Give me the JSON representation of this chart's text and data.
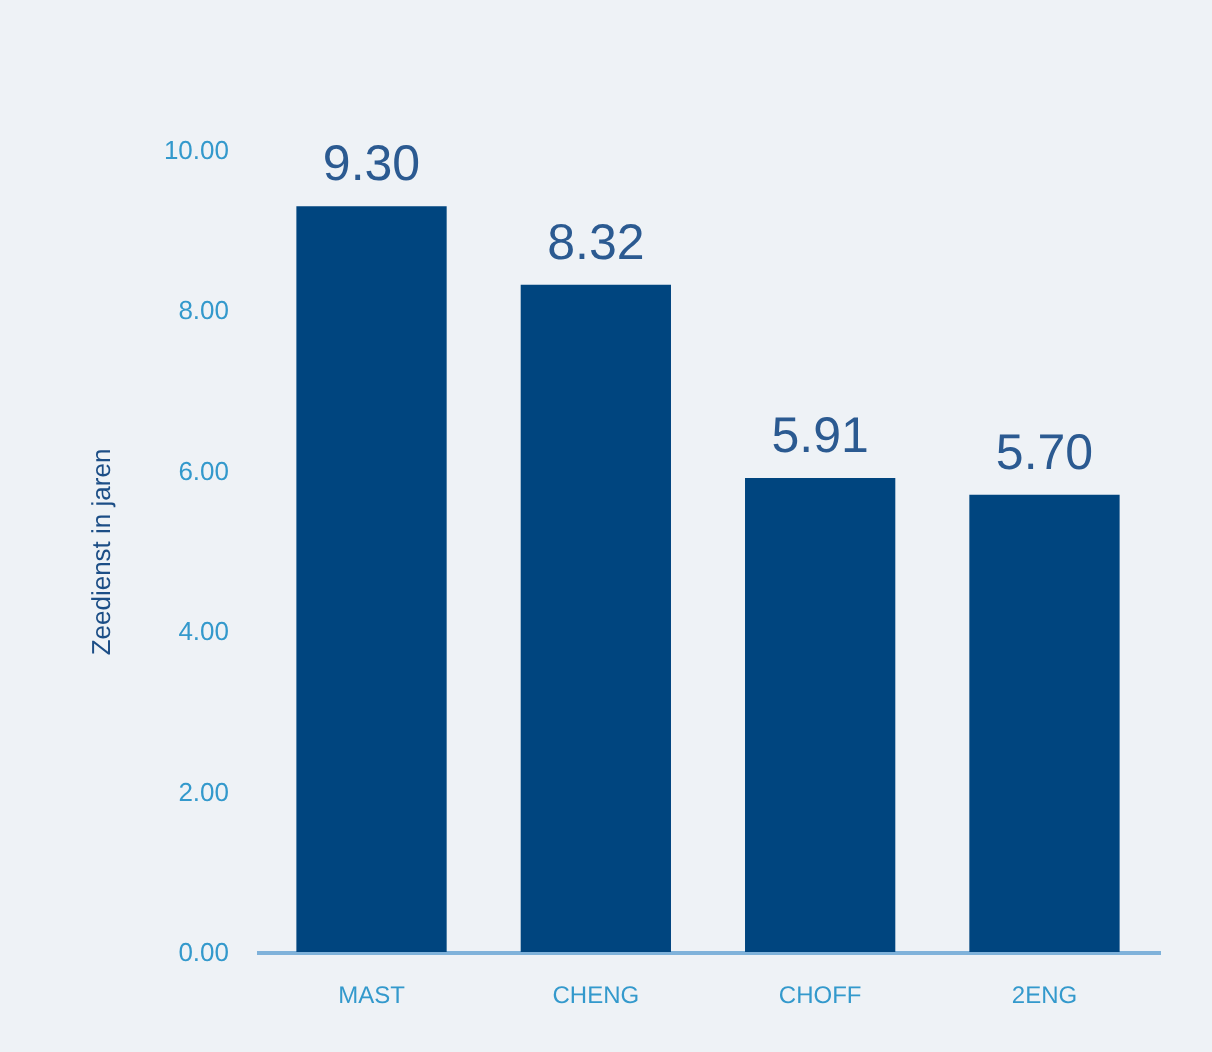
{
  "chart_data": {
    "type": "bar",
    "ylabel": "Zeedienst in jaren",
    "categories": [
      "MAST",
      "CHENG",
      "CHOFF",
      "2ENG"
    ],
    "values": [
      9.3,
      8.32,
      5.91,
      5.7
    ],
    "color": "#00457f",
    "value_labels": [
      "9.30",
      "8.32",
      "5.91",
      "5.70"
    ],
    "ylim": [
      0,
      10
    ],
    "yticks": [
      {
        "value": 0,
        "label": "0.00"
      },
      {
        "value": 2,
        "label": "2.00"
      },
      {
        "value": 4,
        "label": "4.00"
      },
      {
        "value": 6,
        "label": "6.00"
      },
      {
        "value": 8,
        "label": "8.00"
      },
      {
        "value": 10,
        "label": "10.00"
      }
    ],
    "grid": false
  }
}
